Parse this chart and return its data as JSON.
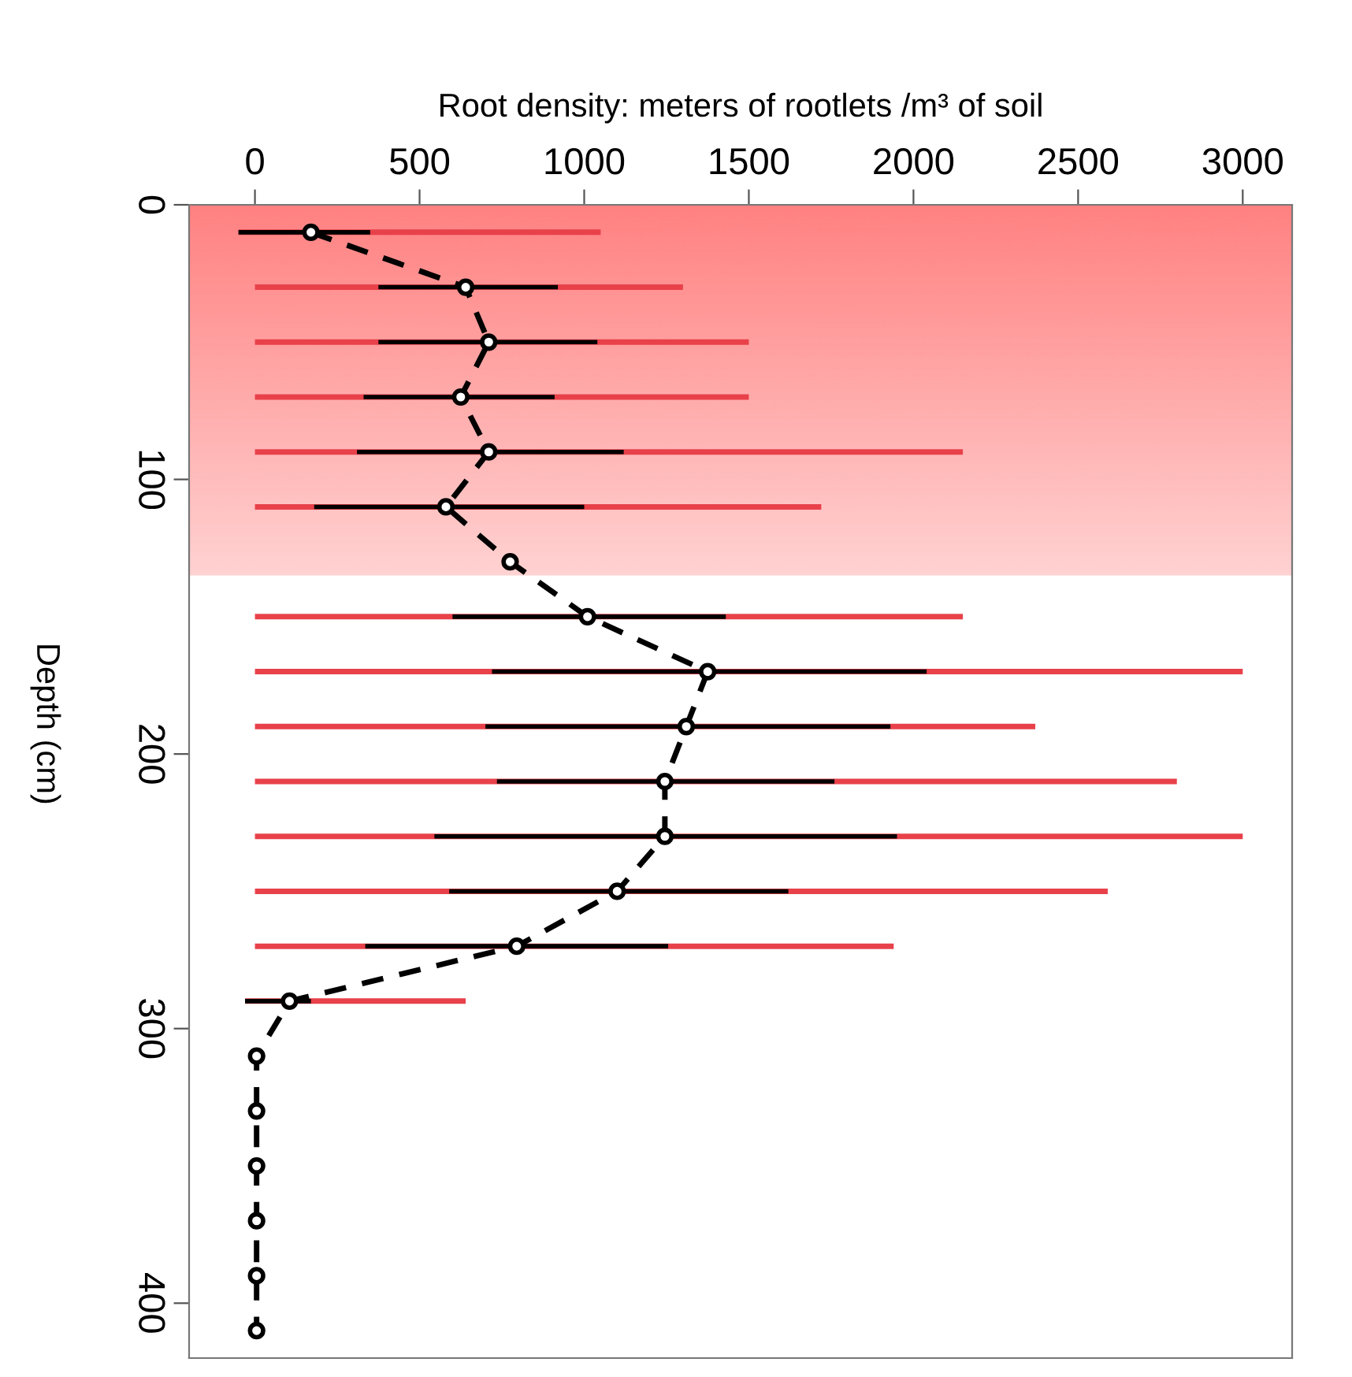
{
  "chart_data": {
    "type": "line",
    "orientation": "horizontal",
    "xlabel": "Root density: meters of rootlets /m³ of soil",
    "ylabel": "Depth (cm)",
    "x": [
      10,
      30,
      50,
      70,
      90,
      110,
      130,
      150,
      170,
      190,
      210,
      230,
      250,
      270,
      290,
      310,
      330,
      350,
      370,
      390,
      410
    ],
    "series": [
      {
        "type": "bar",
        "color": "#e8414a",
        "base": [
          -50,
          0,
          0,
          0,
          0,
          0,
          null,
          0,
          0,
          0,
          0,
          0,
          0,
          0,
          -30,
          null,
          null,
          null,
          null,
          null,
          null
        ],
        "values": [
          1100,
          1300,
          1500,
          1500,
          2150,
          1720,
          null,
          2150,
          3000,
          2370,
          2800,
          3000,
          2590,
          1940,
          670,
          null,
          null,
          null,
          null,
          null,
          null
        ]
      },
      {
        "color": "#000000",
        "marker": "circle",
        "line_style": "dashed",
        "values": [
          170,
          640,
          710,
          625,
          710,
          580,
          775,
          1010,
          1375,
          1310,
          1245,
          1245,
          1100,
          795,
          105,
          5,
          5,
          5,
          5,
          5,
          5
        ],
        "errors": [
          [
            -50,
            350
          ],
          [
            375,
            920
          ],
          [
            375,
            1040
          ],
          [
            330,
            910
          ],
          [
            310,
            1120
          ],
          [
            180,
            1000
          ],
          null,
          [
            600,
            1430
          ],
          [
            720,
            2040
          ],
          [
            700,
            1930
          ],
          [
            735,
            1760
          ],
          [
            545,
            1950
          ],
          [
            590,
            1620
          ],
          [
            335,
            1255
          ],
          [
            -30,
            170
          ],
          null,
          null,
          null,
          null,
          null,
          null
        ]
      }
    ],
    "xlim": [
      -200,
      3150
    ],
    "xticks": [
      0,
      500,
      1000,
      1500,
      2000,
      2500,
      3000
    ],
    "ylim": [
      420,
      0
    ],
    "yticks": [
      0,
      100,
      200,
      300,
      400
    ],
    "bands": [
      {
        "axis": "y",
        "from": 0,
        "to": 135,
        "color": "#ff6666"
      }
    ],
    "grid": false,
    "legend": false
  }
}
